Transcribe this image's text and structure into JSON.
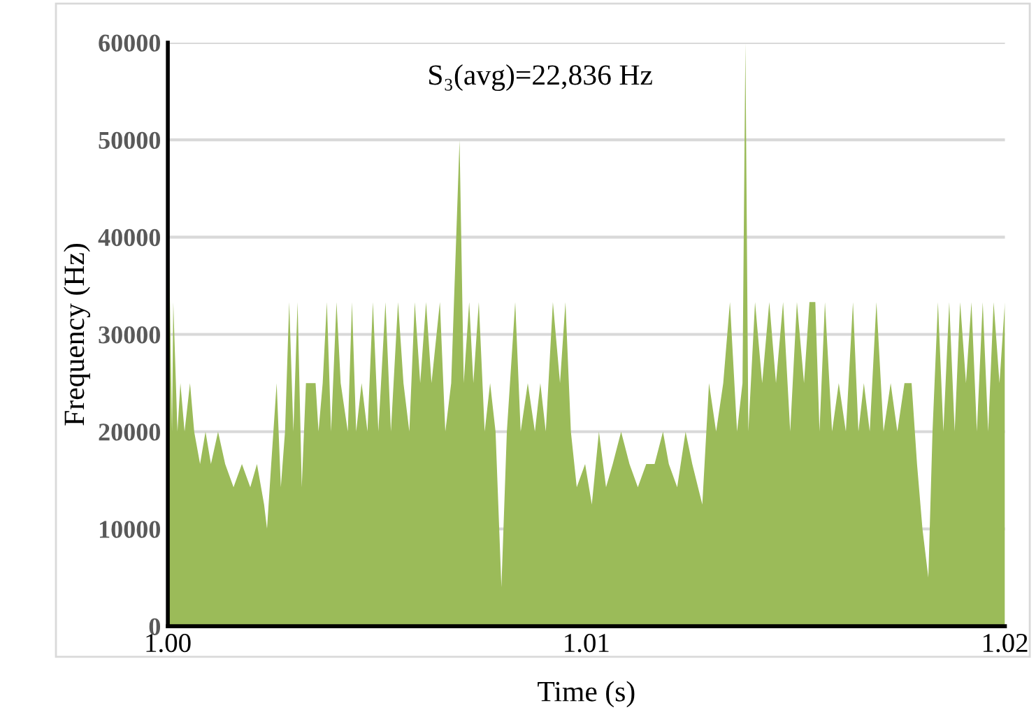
{
  "chart_data": {
    "type": "area",
    "xlabel": "Time (s)",
    "ylabel": "Frequency (Hz)",
    "annotations": [
      "S₃(avg)=22,836 Hz"
    ],
    "xlim": [
      1.0,
      1.02
    ],
    "xticks": [
      {
        "value": 1.0,
        "label": "1.00"
      },
      {
        "value": 1.01,
        "label": "1.01"
      },
      {
        "value": 1.02,
        "label": "1.02"
      }
    ],
    "ylim": [
      0,
      60000
    ],
    "yticks": [
      0,
      10000,
      20000,
      30000,
      40000,
      50000,
      60000
    ],
    "grid": "y",
    "series": [
      {
        "color": "#9bbb59",
        "x": [
          1.0,
          1.0001,
          1.00013,
          1.00023,
          1.0003,
          1.0004,
          1.00053,
          1.00063,
          1.00077,
          1.0009,
          1.00103,
          1.0012,
          1.00137,
          1.00157,
          1.00177,
          1.00197,
          1.00213,
          1.0023,
          1.00237,
          1.00247,
          1.0026,
          1.0027,
          1.0028,
          1.0029,
          1.003,
          1.0031,
          1.0032,
          1.0033,
          1.00353,
          1.0036,
          1.0037,
          1.0038,
          1.0039,
          1.00403,
          1.00413,
          1.0043,
          1.0044,
          1.0045,
          1.00463,
          1.00477,
          1.0049,
          1.00503,
          1.0052,
          1.00533,
          1.0055,
          1.00563,
          1.00577,
          1.0059,
          1.00603,
          1.00617,
          1.0063,
          1.0065,
          1.00663,
          1.00677,
          1.00697,
          1.00707,
          1.0072,
          1.0073,
          1.00743,
          1.00757,
          1.0077,
          1.00783,
          1.00797,
          1.0081,
          1.0083,
          1.00843,
          1.0086,
          1.00877,
          1.0089,
          1.00903,
          1.0092,
          1.00937,
          1.0095,
          1.00963,
          1.00977,
          1.00997,
          1.01013,
          1.0103,
          1.01047,
          1.01063,
          1.01083,
          1.01103,
          1.01123,
          1.01143,
          1.01163,
          1.01183,
          1.01197,
          1.01217,
          1.01237,
          1.01253,
          1.01277,
          1.01293,
          1.0131,
          1.01327,
          1.01343,
          1.0136,
          1.01373,
          1.0138,
          1.01387,
          1.01403,
          1.0142,
          1.01437,
          1.01453,
          1.0147,
          1.01487,
          1.01503,
          1.0152,
          1.01533,
          1.01547,
          1.01557,
          1.0157,
          1.01587,
          1.01603,
          1.0162,
          1.01637,
          1.0165,
          1.01663,
          1.01677,
          1.01693,
          1.0171,
          1.01727,
          1.01743,
          1.0176,
          1.01777,
          1.0179,
          1.01803,
          1.01817,
          1.01827,
          1.0184,
          1.01853,
          1.01867,
          1.0188,
          1.01893,
          1.01907,
          1.0192,
          1.01933,
          1.01947,
          1.0196,
          1.01973,
          1.01987,
          1.02
        ],
        "values": [
          47000,
          20000,
          33333,
          20000,
          25000,
          20000,
          25000,
          20000,
          16667,
          20000,
          16667,
          20000,
          16667,
          14286,
          16667,
          14286,
          16667,
          12500,
          10000,
          16667,
          25000,
          14286,
          20000,
          33333,
          20000,
          33333,
          14286,
          25000,
          25000,
          20000,
          25000,
          33333,
          20000,
          33333,
          25000,
          20000,
          33333,
          20000,
          25000,
          20000,
          33333,
          20000,
          33333,
          20000,
          33333,
          25000,
          20000,
          33333,
          25000,
          33333,
          25000,
          33333,
          20000,
          25000,
          50000,
          25000,
          33333,
          25000,
          33333,
          20000,
          25000,
          20000,
          4000,
          20000,
          33333,
          20000,
          25000,
          20000,
          25000,
          20000,
          33333,
          25000,
          33333,
          20000,
          14286,
          16667,
          12500,
          20000,
          14286,
          16667,
          20000,
          16667,
          14286,
          16667,
          16667,
          20000,
          16667,
          14286,
          20000,
          16667,
          12500,
          25000,
          20000,
          25000,
          33333,
          20000,
          25000,
          60000,
          20000,
          33333,
          25000,
          33333,
          25000,
          33333,
          20000,
          33333,
          25000,
          33333,
          33333,
          20000,
          33333,
          20000,
          25000,
          20000,
          33333,
          20000,
          25000,
          20000,
          33333,
          20000,
          25000,
          20000,
          25000,
          25000,
          16667,
          10000,
          5000,
          20000,
          33333,
          20000,
          33333,
          20000,
          33333,
          25000,
          33333,
          20000,
          33333,
          20000,
          33333,
          25000,
          33333
        ]
      }
    ]
  }
}
